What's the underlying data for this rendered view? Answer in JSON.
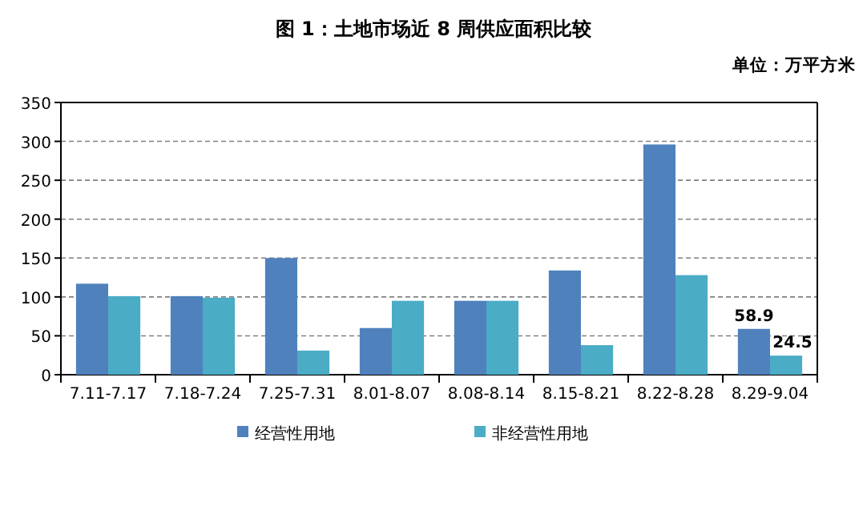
{
  "chart_data": {
    "type": "bar",
    "title": "图 1：土地市场近 8 周供应面积比较",
    "subtitle": "单位：万平方米",
    "categories": [
      "7.11-7.17",
      "7.18-7.24",
      "7.25-7.31",
      "8.01-8.07",
      "8.08-8.14",
      "8.15-8.21",
      "8.22-8.28",
      "8.29-9.04"
    ],
    "series": [
      {
        "name": "经营性用地",
        "color": "#4f81bd",
        "values": [
          117,
          101,
          150,
          60,
          95,
          134,
          296,
          58.9
        ],
        "value_labels": [
          null,
          null,
          null,
          null,
          null,
          null,
          null,
          "58.9"
        ]
      },
      {
        "name": "非经营性用地",
        "color": "#4bacc6",
        "values": [
          101,
          99,
          31,
          95,
          95,
          38,
          128,
          24.5
        ],
        "value_labels": [
          null,
          null,
          null,
          null,
          null,
          null,
          null,
          "24.5"
        ]
      }
    ],
    "ylim": [
      0,
      350
    ],
    "yticks": [
      0,
      50,
      100,
      150,
      200,
      250,
      300,
      350
    ],
    "grid": "y",
    "legend": "bottom"
  }
}
